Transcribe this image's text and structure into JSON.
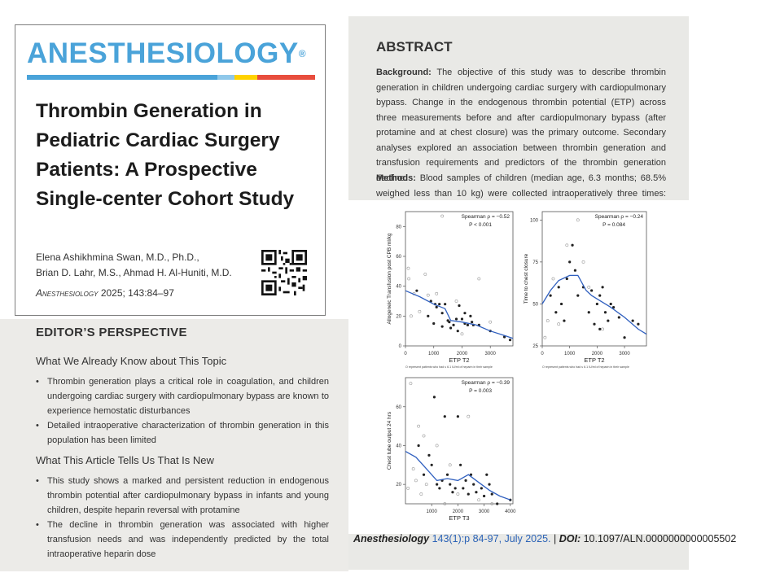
{
  "journal": {
    "name": "ANESTHESIOLOGY",
    "registered": "®",
    "bar_colors": [
      "#4aa3d9",
      "#4aa3d9",
      "#4aa3d9",
      "#ffd200",
      "#e84d3d"
    ]
  },
  "article": {
    "title": "Thrombin Generation in Pediatric Cardiac Surgery Patients: A Prospective Single-center Cohort Study",
    "authors_line1": "Elena Ashikhmina Swan, M.D., Ph.D.,",
    "authors_line2": "Brian D. Lahr, M.S., Ahmad H. Al-Huniti, M.D.",
    "citation_journal": "Anesthesiology",
    "citation_rest": "2025; 143:84–97"
  },
  "editor": {
    "heading": "EDITOR’S PERSPECTIVE",
    "known_heading": "What We Already Know about This Topic",
    "known": [
      "Thrombin generation plays a critical role in coagulation, and children undergoing cardiac surgery with cardiopulmonary bypass are known to experience hemostatic disturbances",
      "Detailed intraoperative characterization of thrombin generation in this population has been limited"
    ],
    "new_heading": "What This Article Tells Us That Is New",
    "new": [
      "This study shows a marked and persistent reduction in endogenous thrombin potential after cardiopulmonary bypass in infants and young children, despite heparin reversal with protamine",
      "The decline in thrombin generation was associated with higher transfusion needs and was independently predicted by the total intraoperative heparin dose"
    ]
  },
  "abstract": {
    "heading": "ABSTRACT",
    "background_label": "Background:",
    "background_text": "The objective of this study was to describe thrombin generation in children undergoing cardiac surgery with cardiopulmonary bypass. Change in the endogenous thrombin potential (ETP) across three measurements before and after cardiopulmonary bypass (after protamine and at chest closure) was the primary outcome. Secondary analyses explored an association between thrombin generation and transfusion requirements and predictors of the thrombin generation decline.",
    "methods_label": "Methods:",
    "methods_text": "Blood samples of children (median age, 6.3 months; 68.5% weighed less than 10 kg) were collected intraoperatively three times: before"
  },
  "caption": {
    "journal": "Anesthesiology",
    "issue": "143(1):p 84-97, July 2025.",
    "sep": "|",
    "doi_label": "DOI:",
    "doi": "10.1097/ALN.0000000000005502"
  },
  "chart_data": [
    {
      "type": "scatter",
      "xlabel": "ETP T2",
      "ylabel": "Allogeneic Transfusion post CPB ml/kg",
      "annotation1": "Spearman ρ = −0.52",
      "annotation2": "P < 0.001",
      "footnote": "O represent patients who had ≤ 6.1 IU/ml of heparin in their sample",
      "xlim": [
        0,
        3800
      ],
      "ylim": [
        0,
        90
      ],
      "xticks": [
        0,
        1000,
        2000,
        3000
      ],
      "yticks": [
        0,
        20,
        40,
        60,
        80
      ],
      "line_color": "#2f5fbf",
      "points_dark": [
        [
          400,
          37
        ],
        [
          800,
          20
        ],
        [
          900,
          30
        ],
        [
          1000,
          15
        ],
        [
          1050,
          28
        ],
        [
          1100,
          26
        ],
        [
          1200,
          28
        ],
        [
          1300,
          22
        ],
        [
          1300,
          13
        ],
        [
          1400,
          28
        ],
        [
          1500,
          17
        ],
        [
          1550,
          16
        ],
        [
          1600,
          12
        ],
        [
          1700,
          14
        ],
        [
          1800,
          18
        ],
        [
          1850,
          10
        ],
        [
          1900,
          27
        ],
        [
          2000,
          18
        ],
        [
          2100,
          22
        ],
        [
          2100,
          15
        ],
        [
          2200,
          14
        ],
        [
          2300,
          20
        ],
        [
          2350,
          16
        ],
        [
          2400,
          14
        ],
        [
          2600,
          14
        ],
        [
          3000,
          10
        ],
        [
          3500,
          6
        ],
        [
          3700,
          4
        ]
      ],
      "points_open": [
        [
          100,
          52
        ],
        [
          120,
          45
        ],
        [
          200,
          20
        ],
        [
          300,
          35
        ],
        [
          500,
          23
        ],
        [
          700,
          48
        ],
        [
          800,
          34
        ],
        [
          1100,
          35
        ],
        [
          1300,
          87
        ],
        [
          1800,
          30
        ],
        [
          2000,
          8
        ],
        [
          2600,
          45
        ],
        [
          3000,
          16
        ]
      ],
      "trend": [
        [
          0,
          37
        ],
        [
          500,
          33
        ],
        [
          1000,
          28
        ],
        [
          1400,
          25
        ],
        [
          1600,
          17
        ],
        [
          2000,
          16
        ],
        [
          2500,
          14
        ],
        [
          3000,
          10
        ],
        [
          3500,
          7
        ],
        [
          3800,
          5
        ]
      ]
    },
    {
      "type": "scatter",
      "xlabel": "ETP T2",
      "ylabel": "Time to chest closure",
      "annotation1": "Spearman ρ = −0.24",
      "annotation2": "P = 0.084",
      "footnote": "O represent patients who had ≤ 6.1 IU/ml of heparin in their sample",
      "xlim": [
        0,
        3800
      ],
      "ylim": [
        25,
        105
      ],
      "xticks": [
        0,
        1000,
        2000,
        3000
      ],
      "yticks": [
        25,
        50,
        75,
        100
      ],
      "line_color": "#2f5fbf",
      "points_dark": [
        [
          300,
          55
        ],
        [
          500,
          45
        ],
        [
          600,
          60
        ],
        [
          700,
          50
        ],
        [
          800,
          40
        ],
        [
          900,
          65
        ],
        [
          1000,
          75
        ],
        [
          1100,
          85
        ],
        [
          1200,
          70
        ],
        [
          1300,
          55
        ],
        [
          1500,
          60
        ],
        [
          1700,
          45
        ],
        [
          1800,
          58
        ],
        [
          1900,
          38
        ],
        [
          2000,
          50
        ],
        [
          2100,
          55
        ],
        [
          2100,
          35
        ],
        [
          2200,
          60
        ],
        [
          2300,
          45
        ],
        [
          2400,
          40
        ],
        [
          2500,
          50
        ],
        [
          2600,
          48
        ],
        [
          2800,
          42
        ],
        [
          3000,
          30
        ],
        [
          3300,
          40
        ],
        [
          3500,
          38
        ]
      ],
      "points_open": [
        [
          100,
          30
        ],
        [
          200,
          40
        ],
        [
          400,
          65
        ],
        [
          600,
          38
        ],
        [
          900,
          85
        ],
        [
          1300,
          100
        ],
        [
          1500,
          75
        ],
        [
          1700,
          60
        ],
        [
          2200,
          35
        ]
      ],
      "trend": [
        [
          0,
          50
        ],
        [
          300,
          58
        ],
        [
          600,
          64
        ],
        [
          1000,
          67
        ],
        [
          1300,
          67
        ],
        [
          1600,
          58
        ],
        [
          1800,
          55
        ],
        [
          2100,
          52
        ],
        [
          2500,
          48
        ],
        [
          3000,
          42
        ],
        [
          3500,
          35
        ],
        [
          3800,
          32
        ]
      ]
    },
    {
      "type": "scatter",
      "xlabel": "ETP T3",
      "ylabel": "Chest tube output 24 hrs",
      "annotation1": "Spearman ρ = −0.39",
      "annotation2": "P = 0.003",
      "xlim": [
        0,
        4100
      ],
      "ylim": [
        10,
        75
      ],
      "xticks": [
        1000,
        2000,
        3000,
        4000
      ],
      "yticks": [
        20,
        40,
        60
      ],
      "line_color": "#2f5fbf",
      "points_dark": [
        [
          500,
          40
        ],
        [
          700,
          25
        ],
        [
          900,
          35
        ],
        [
          1000,
          30
        ],
        [
          1100,
          65
        ],
        [
          1200,
          20
        ],
        [
          1300,
          18
        ],
        [
          1400,
          22
        ],
        [
          1500,
          55
        ],
        [
          1600,
          25
        ],
        [
          1700,
          20
        ],
        [
          1800,
          16
        ],
        [
          1900,
          18
        ],
        [
          2000,
          55
        ],
        [
          2100,
          30
        ],
        [
          2200,
          18
        ],
        [
          2300,
          22
        ],
        [
          2400,
          15
        ],
        [
          2500,
          25
        ],
        [
          2600,
          20
        ],
        [
          2700,
          16
        ],
        [
          2900,
          18
        ],
        [
          3000,
          14
        ],
        [
          3100,
          25
        ],
        [
          3200,
          20
        ],
        [
          3300,
          15
        ],
        [
          3500,
          10
        ],
        [
          4000,
          12
        ]
      ],
      "points_open": [
        [
          100,
          18
        ],
        [
          200,
          72
        ],
        [
          300,
          28
        ],
        [
          400,
          22
        ],
        [
          500,
          50
        ],
        [
          600,
          15
        ],
        [
          700,
          45
        ],
        [
          800,
          20
        ],
        [
          1200,
          40
        ],
        [
          1500,
          10
        ],
        [
          1700,
          30
        ],
        [
          2000,
          15
        ],
        [
          2400,
          55
        ],
        [
          2800,
          12
        ],
        [
          3300,
          10
        ]
      ],
      "trend": [
        [
          0,
          37
        ],
        [
          400,
          34
        ],
        [
          800,
          28
        ],
        [
          1200,
          22
        ],
        [
          1600,
          23
        ],
        [
          2000,
          22
        ],
        [
          2400,
          25
        ],
        [
          2800,
          21
        ],
        [
          3200,
          17
        ],
        [
          3600,
          14
        ],
        [
          4000,
          12
        ]
      ]
    }
  ]
}
